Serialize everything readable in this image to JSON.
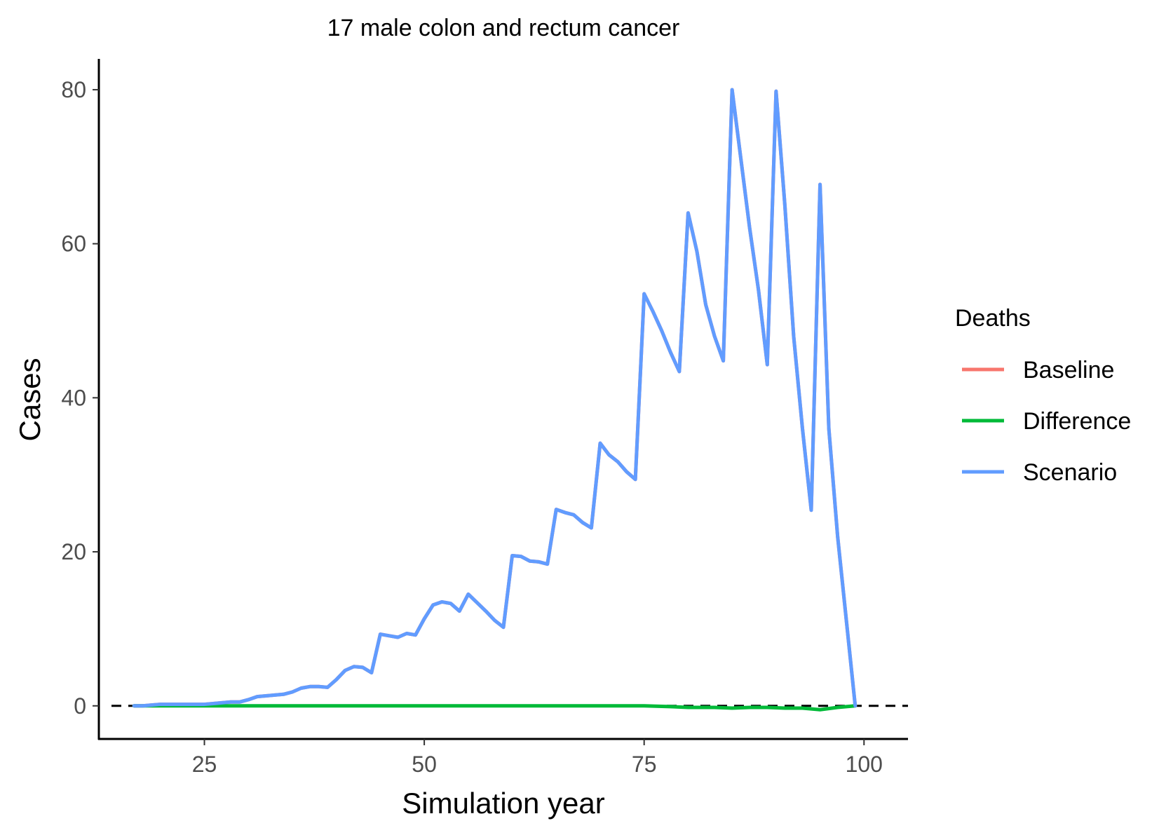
{
  "chart_data": {
    "type": "line",
    "title": "17 male colon and rectum cancer",
    "xlabel": "Simulation year",
    "ylabel": "Cases",
    "xlim": [
      13,
      105
    ],
    "ylim": [
      -4.3,
      84
    ],
    "x_ticks": [
      25,
      50,
      75,
      100
    ],
    "y_ticks": [
      0,
      20,
      40,
      60,
      80
    ],
    "grid": false,
    "reference_line": {
      "y": 0,
      "style": "dashed",
      "color": "#000000"
    },
    "legend": {
      "title": "Deaths",
      "position": "right"
    },
    "series": [
      {
        "name": "Baseline",
        "color": "#F8766D",
        "x": [
          17,
          18,
          19,
          20,
          21,
          22,
          23,
          24,
          25,
          26,
          27,
          28,
          29,
          30,
          31,
          32,
          33,
          34,
          35,
          36,
          37,
          38,
          39,
          40,
          41,
          42,
          43,
          44,
          45,
          46,
          47,
          48,
          49,
          50,
          51,
          52,
          53,
          54,
          55,
          56,
          57,
          58,
          59,
          60,
          61,
          62,
          63,
          64,
          65,
          66,
          67,
          68,
          69,
          70,
          71,
          72,
          73,
          74,
          75,
          76,
          77,
          78,
          79,
          80,
          81,
          82,
          83,
          84,
          85,
          86,
          87,
          88,
          89,
          90,
          91,
          92,
          93,
          94,
          95,
          96,
          97,
          98,
          99
        ],
        "y": [
          0,
          0,
          0.1,
          0.2,
          0.2,
          0.2,
          0.2,
          0.2,
          0.2,
          0.3,
          0.4,
          0.5,
          0.5,
          0.8,
          1.2,
          1.3,
          1.4,
          1.5,
          1.8,
          2.3,
          2.5,
          2.5,
          2.4,
          3.4,
          4.6,
          5.1,
          5.0,
          4.3,
          9.3,
          9.1,
          8.9,
          9.4,
          9.2,
          11.3,
          13.1,
          13.5,
          13.3,
          12.3,
          14.5,
          13.4,
          12.3,
          11.1,
          10.2,
          19.5,
          19.4,
          18.8,
          18.7,
          18.4,
          25.5,
          25.1,
          24.8,
          23.8,
          23.1,
          34.1,
          32.6,
          31.7,
          30.4,
          29.4,
          53.5,
          51.2,
          48.7,
          45.9,
          43.4,
          64.0,
          59.0,
          52.1,
          48.0,
          44.8,
          80.0,
          71.0,
          62.0,
          54.0,
          44.3,
          79.8,
          65.0,
          48.0,
          36.0,
          25.4,
          67.7,
          36.0,
          22.0,
          11.0,
          0.0
        ]
      },
      {
        "name": "Difference",
        "color": "#00BA38",
        "x": [
          17,
          20,
          25,
          30,
          35,
          40,
          45,
          50,
          55,
          60,
          65,
          70,
          75,
          78,
          80,
          83,
          85,
          87,
          89,
          91,
          93,
          95,
          97,
          99
        ],
        "y": [
          0,
          0,
          0,
          0,
          0,
          0,
          0,
          0,
          0,
          0,
          0,
          0,
          0,
          -0.1,
          -0.2,
          -0.2,
          -0.3,
          -0.2,
          -0.2,
          -0.3,
          -0.3,
          -0.5,
          -0.2,
          0
        ]
      },
      {
        "name": "Scenario",
        "color": "#619CFF",
        "x": [
          17,
          18,
          19,
          20,
          21,
          22,
          23,
          24,
          25,
          26,
          27,
          28,
          29,
          30,
          31,
          32,
          33,
          34,
          35,
          36,
          37,
          38,
          39,
          40,
          41,
          42,
          43,
          44,
          45,
          46,
          47,
          48,
          49,
          50,
          51,
          52,
          53,
          54,
          55,
          56,
          57,
          58,
          59,
          60,
          61,
          62,
          63,
          64,
          65,
          66,
          67,
          68,
          69,
          70,
          71,
          72,
          73,
          74,
          75,
          76,
          77,
          78,
          79,
          80,
          81,
          82,
          83,
          84,
          85,
          86,
          87,
          88,
          89,
          90,
          91,
          92,
          93,
          94,
          95,
          96,
          97,
          98,
          99
        ],
        "y": [
          0,
          0,
          0.1,
          0.2,
          0.2,
          0.2,
          0.2,
          0.2,
          0.2,
          0.3,
          0.4,
          0.5,
          0.5,
          0.8,
          1.2,
          1.3,
          1.4,
          1.5,
          1.8,
          2.3,
          2.5,
          2.5,
          2.4,
          3.4,
          4.6,
          5.1,
          5.0,
          4.3,
          9.3,
          9.1,
          8.9,
          9.4,
          9.2,
          11.3,
          13.1,
          13.5,
          13.3,
          12.3,
          14.5,
          13.4,
          12.3,
          11.1,
          10.2,
          19.5,
          19.4,
          18.8,
          18.7,
          18.4,
          25.5,
          25.1,
          24.8,
          23.8,
          23.1,
          34.1,
          32.6,
          31.7,
          30.4,
          29.4,
          53.5,
          51.2,
          48.7,
          45.9,
          43.4,
          64.0,
          59.0,
          52.1,
          48.0,
          44.8,
          80.0,
          71.0,
          62.0,
          54.0,
          44.3,
          79.8,
          65.0,
          48.0,
          36.0,
          25.4,
          67.7,
          36.0,
          22.0,
          11.0,
          0.0
        ]
      }
    ]
  }
}
